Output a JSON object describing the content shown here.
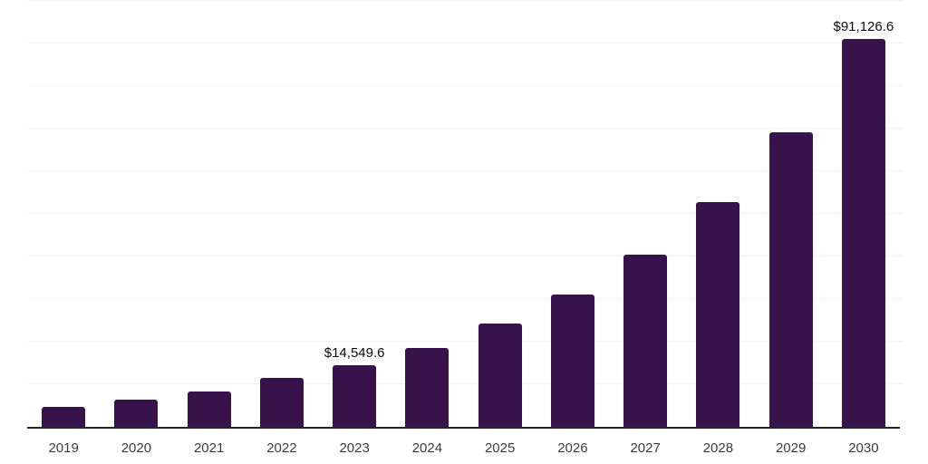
{
  "chart_data": {
    "type": "bar",
    "title": "",
    "xlabel": "",
    "ylabel": "",
    "categories": [
      "2019",
      "2020",
      "2021",
      "2022",
      "2023",
      "2024",
      "2025",
      "2026",
      "2027",
      "2028",
      "2029",
      "2030"
    ],
    "values": [
      4600,
      6400,
      8300,
      11450,
      14549.6,
      18550,
      24200,
      31150,
      40350,
      52800,
      69200,
      91126.6
    ],
    "data_labels": {
      "2023": "$14,549.6",
      "2030": "$91,126.6"
    },
    "ylim": [
      0,
      100000
    ],
    "gridline_step": 10000,
    "grid": "horizontal",
    "legend": "none",
    "y_axis_labels_visible": false
  },
  "colors": {
    "bar": "#37124B",
    "axis": "#262626",
    "gridline": "#f1f1f3",
    "tick_label": "#3d3d3d",
    "value_label": "#0a0a0a",
    "background": "#ffffff"
  }
}
